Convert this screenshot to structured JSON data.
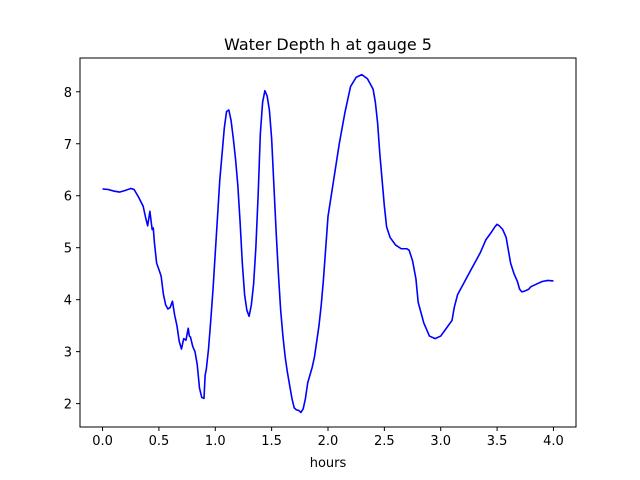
{
  "chart_data": {
    "type": "line",
    "title": "Water Depth h at gauge 5",
    "xlabel": "hours",
    "ylabel": "",
    "xlim": [
      -0.2,
      4.2
    ],
    "ylim": [
      1.55,
      8.65
    ],
    "xticks": [
      0.0,
      0.5,
      1.0,
      1.5,
      2.0,
      2.5,
      3.0,
      3.5,
      4.0
    ],
    "xtick_labels": [
      "0.0",
      "0.5",
      "1.0",
      "1.5",
      "2.0",
      "2.5",
      "3.0",
      "3.5",
      "4.0"
    ],
    "yticks": [
      2,
      3,
      4,
      5,
      6,
      7,
      8
    ],
    "ytick_labels": [
      "2",
      "3",
      "4",
      "5",
      "6",
      "7",
      "8"
    ],
    "grid": false,
    "legend": "none",
    "series": [
      {
        "color": "#0000ff",
        "x": [
          0.0,
          0.05,
          0.1,
          0.15,
          0.2,
          0.25,
          0.28,
          0.32,
          0.36,
          0.38,
          0.4,
          0.42,
          0.44,
          0.45,
          0.46,
          0.48,
          0.5,
          0.52,
          0.54,
          0.56,
          0.58,
          0.6,
          0.62,
          0.64,
          0.66,
          0.68,
          0.7,
          0.72,
          0.74,
          0.76,
          0.77,
          0.78,
          0.8,
          0.82,
          0.84,
          0.86,
          0.88,
          0.9,
          0.91,
          0.92,
          0.94,
          0.96,
          0.98,
          1.0,
          1.02,
          1.04,
          1.06,
          1.08,
          1.1,
          1.12,
          1.14,
          1.16,
          1.18,
          1.2,
          1.22,
          1.24,
          1.26,
          1.28,
          1.3,
          1.32,
          1.34,
          1.36,
          1.38,
          1.4,
          1.42,
          1.44,
          1.46,
          1.48,
          1.5,
          1.52,
          1.54,
          1.56,
          1.58,
          1.6,
          1.62,
          1.64,
          1.66,
          1.68,
          1.7,
          1.72,
          1.74,
          1.76,
          1.78,
          1.8,
          1.82,
          1.84,
          1.86,
          1.88,
          1.9,
          1.92,
          1.94,
          1.96,
          1.98,
          2.0,
          2.05,
          2.1,
          2.15,
          2.2,
          2.25,
          2.3,
          2.35,
          2.4,
          2.42,
          2.44,
          2.46,
          2.48,
          2.5,
          2.52,
          2.55,
          2.6,
          2.65,
          2.7,
          2.72,
          2.75,
          2.78,
          2.8,
          2.85,
          2.9,
          2.95,
          3.0,
          3.05,
          3.1,
          3.12,
          3.15,
          3.2,
          3.25,
          3.3,
          3.35,
          3.4,
          3.45,
          3.48,
          3.5,
          3.52,
          3.55,
          3.58,
          3.6,
          3.62,
          3.65,
          3.68,
          3.7,
          3.72,
          3.75,
          3.78,
          3.8,
          3.85,
          3.9,
          3.95,
          4.0
        ],
        "y": [
          6.13,
          6.12,
          6.09,
          6.07,
          6.1,
          6.14,
          6.12,
          5.97,
          5.8,
          5.6,
          5.42,
          5.7,
          5.35,
          5.38,
          5.1,
          4.7,
          4.58,
          4.45,
          4.1,
          3.9,
          3.82,
          3.85,
          3.97,
          3.7,
          3.5,
          3.2,
          3.05,
          3.25,
          3.22,
          3.45,
          3.3,
          3.28,
          3.1,
          3.0,
          2.75,
          2.3,
          2.12,
          2.1,
          2.55,
          2.65,
          3.05,
          3.6,
          4.2,
          4.9,
          5.6,
          6.3,
          6.8,
          7.3,
          7.62,
          7.65,
          7.45,
          7.1,
          6.7,
          6.2,
          5.5,
          4.7,
          4.1,
          3.8,
          3.68,
          3.9,
          4.3,
          5.0,
          6.0,
          7.2,
          7.8,
          8.02,
          7.92,
          7.65,
          7.1,
          6.2,
          5.3,
          4.5,
          3.8,
          3.3,
          2.9,
          2.6,
          2.35,
          2.1,
          1.92,
          1.88,
          1.87,
          1.83,
          1.9,
          2.1,
          2.4,
          2.55,
          2.7,
          2.9,
          3.2,
          3.5,
          3.9,
          4.4,
          5.0,
          5.6,
          6.3,
          7.0,
          7.6,
          8.1,
          8.28,
          8.33,
          8.25,
          8.05,
          7.8,
          7.4,
          6.8,
          6.3,
          5.8,
          5.4,
          5.2,
          5.05,
          4.98,
          4.98,
          4.95,
          4.75,
          4.4,
          3.95,
          3.55,
          3.3,
          3.25,
          3.3,
          3.45,
          3.6,
          3.85,
          4.1,
          4.3,
          4.5,
          4.7,
          4.9,
          5.15,
          5.3,
          5.4,
          5.45,
          5.42,
          5.35,
          5.2,
          4.95,
          4.7,
          4.5,
          4.35,
          4.2,
          4.15,
          4.17,
          4.2,
          4.25,
          4.3,
          4.35,
          4.37,
          4.36
        ]
      }
    ]
  }
}
